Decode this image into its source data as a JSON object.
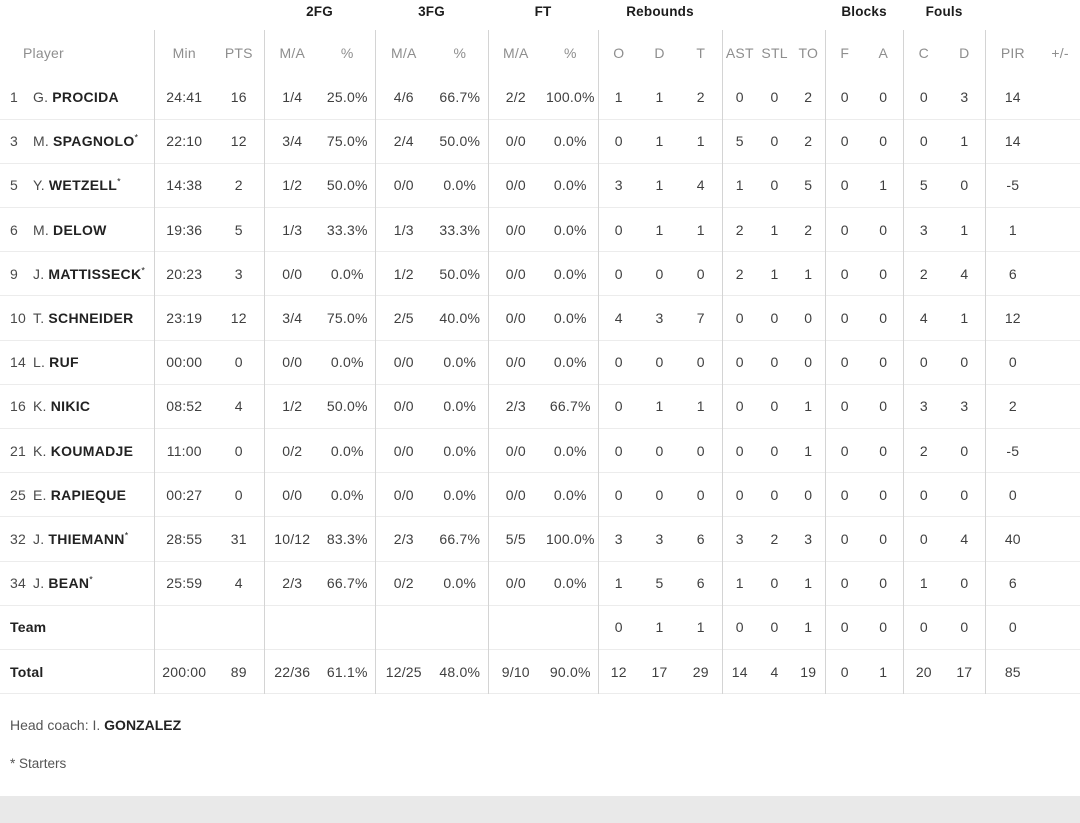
{
  "table": {
    "starter_mark": "*",
    "group_headers": [
      {
        "label": "",
        "span": 3
      },
      {
        "label": "2FG",
        "span": 2
      },
      {
        "label": "3FG",
        "span": 2
      },
      {
        "label": "FT",
        "span": 2
      },
      {
        "label": "Rebounds",
        "span": 3
      },
      {
        "label": "",
        "span": 3
      },
      {
        "label": "Blocks",
        "span": 2
      },
      {
        "label": "Fouls",
        "span": 2
      },
      {
        "label": "",
        "span": 2
      }
    ],
    "columns": [
      "Player",
      "Min",
      "PTS",
      "M/A",
      "%",
      "M/A",
      "%",
      "M/A",
      "%",
      "O",
      "D",
      "T",
      "AST",
      "STL",
      "TO",
      "F",
      "A",
      "C",
      "D",
      "PIR",
      "+/-"
    ],
    "rows": [
      {
        "number": "1",
        "initial": "G.",
        "surname": "PROCIDA",
        "starter": false,
        "stats": [
          "24:41",
          "16",
          "1/4",
          "25.0%",
          "4/6",
          "66.7%",
          "2/2",
          "100.0%",
          "1",
          "1",
          "2",
          "0",
          "0",
          "2",
          "0",
          "0",
          "0",
          "3",
          "14",
          ""
        ]
      },
      {
        "number": "3",
        "initial": "M.",
        "surname": "SPAGNOLO",
        "starter": true,
        "stats": [
          "22:10",
          "12",
          "3/4",
          "75.0%",
          "2/4",
          "50.0%",
          "0/0",
          "0.0%",
          "0",
          "1",
          "1",
          "5",
          "0",
          "2",
          "0",
          "0",
          "0",
          "1",
          "14",
          ""
        ]
      },
      {
        "number": "5",
        "initial": "Y.",
        "surname": "WETZELL",
        "starter": true,
        "stats": [
          "14:38",
          "2",
          "1/2",
          "50.0%",
          "0/0",
          "0.0%",
          "0/0",
          "0.0%",
          "3",
          "1",
          "4",
          "1",
          "0",
          "5",
          "0",
          "1",
          "5",
          "0",
          "-5",
          ""
        ]
      },
      {
        "number": "6",
        "initial": "M.",
        "surname": "DELOW",
        "starter": false,
        "stats": [
          "19:36",
          "5",
          "1/3",
          "33.3%",
          "1/3",
          "33.3%",
          "0/0",
          "0.0%",
          "0",
          "1",
          "1",
          "2",
          "1",
          "2",
          "0",
          "0",
          "3",
          "1",
          "1",
          ""
        ]
      },
      {
        "number": "9",
        "initial": "J.",
        "surname": "MATTISSECK",
        "starter": true,
        "stats": [
          "20:23",
          "3",
          "0/0",
          "0.0%",
          "1/2",
          "50.0%",
          "0/0",
          "0.0%",
          "0",
          "0",
          "0",
          "2",
          "1",
          "1",
          "0",
          "0",
          "2",
          "4",
          "6",
          ""
        ]
      },
      {
        "number": "10",
        "initial": "T.",
        "surname": "SCHNEIDER",
        "starter": false,
        "stats": [
          "23:19",
          "12",
          "3/4",
          "75.0%",
          "2/5",
          "40.0%",
          "0/0",
          "0.0%",
          "4",
          "3",
          "7",
          "0",
          "0",
          "0",
          "0",
          "0",
          "4",
          "1",
          "12",
          ""
        ]
      },
      {
        "number": "14",
        "initial": "L.",
        "surname": "RUF",
        "starter": false,
        "stats": [
          "00:00",
          "0",
          "0/0",
          "0.0%",
          "0/0",
          "0.0%",
          "0/0",
          "0.0%",
          "0",
          "0",
          "0",
          "0",
          "0",
          "0",
          "0",
          "0",
          "0",
          "0",
          "0",
          ""
        ]
      },
      {
        "number": "16",
        "initial": "K.",
        "surname": "NIKIC",
        "starter": false,
        "stats": [
          "08:52",
          "4",
          "1/2",
          "50.0%",
          "0/0",
          "0.0%",
          "2/3",
          "66.7%",
          "0",
          "1",
          "1",
          "0",
          "0",
          "1",
          "0",
          "0",
          "3",
          "3",
          "2",
          ""
        ]
      },
      {
        "number": "21",
        "initial": "K.",
        "surname": "KOUMADJE",
        "starter": false,
        "stats": [
          "11:00",
          "0",
          "0/2",
          "0.0%",
          "0/0",
          "0.0%",
          "0/0",
          "0.0%",
          "0",
          "0",
          "0",
          "0",
          "0",
          "1",
          "0",
          "0",
          "2",
          "0",
          "-5",
          ""
        ]
      },
      {
        "number": "25",
        "initial": "E.",
        "surname": "RAPIEQUE",
        "starter": false,
        "stats": [
          "00:27",
          "0",
          "0/0",
          "0.0%",
          "0/0",
          "0.0%",
          "0/0",
          "0.0%",
          "0",
          "0",
          "0",
          "0",
          "0",
          "0",
          "0",
          "0",
          "0",
          "0",
          "0",
          ""
        ]
      },
      {
        "number": "32",
        "initial": "J.",
        "surname": "THIEMANN",
        "starter": true,
        "stats": [
          "28:55",
          "31",
          "10/12",
          "83.3%",
          "2/3",
          "66.7%",
          "5/5",
          "100.0%",
          "3",
          "3",
          "6",
          "3",
          "2",
          "3",
          "0",
          "0",
          "0",
          "4",
          "40",
          ""
        ]
      },
      {
        "number": "34",
        "initial": "J.",
        "surname": "BEAN",
        "starter": true,
        "stats": [
          "25:59",
          "4",
          "2/3",
          "66.7%",
          "0/2",
          "0.0%",
          "0/0",
          "0.0%",
          "1",
          "5",
          "6",
          "1",
          "0",
          "1",
          "0",
          "0",
          "1",
          "0",
          "6",
          ""
        ]
      },
      {
        "label": "Team",
        "stats": [
          "",
          "",
          "",
          "",
          "",
          "",
          "",
          "",
          "0",
          "1",
          "1",
          "0",
          "0",
          "1",
          "0",
          "0",
          "0",
          "0",
          "0",
          ""
        ]
      },
      {
        "label": "Total",
        "stats": [
          "200:00",
          "89",
          "22/36",
          "61.1%",
          "12/25",
          "48.0%",
          "9/10",
          "90.0%",
          "12",
          "17",
          "29",
          "14",
          "4",
          "19",
          "0",
          "1",
          "20",
          "17",
          "85",
          ""
        ]
      }
    ]
  },
  "footer": {
    "head_coach_prefix": "Head coach: I.",
    "head_coach_name": "GONZALEZ",
    "starters_note": "* Starters"
  }
}
